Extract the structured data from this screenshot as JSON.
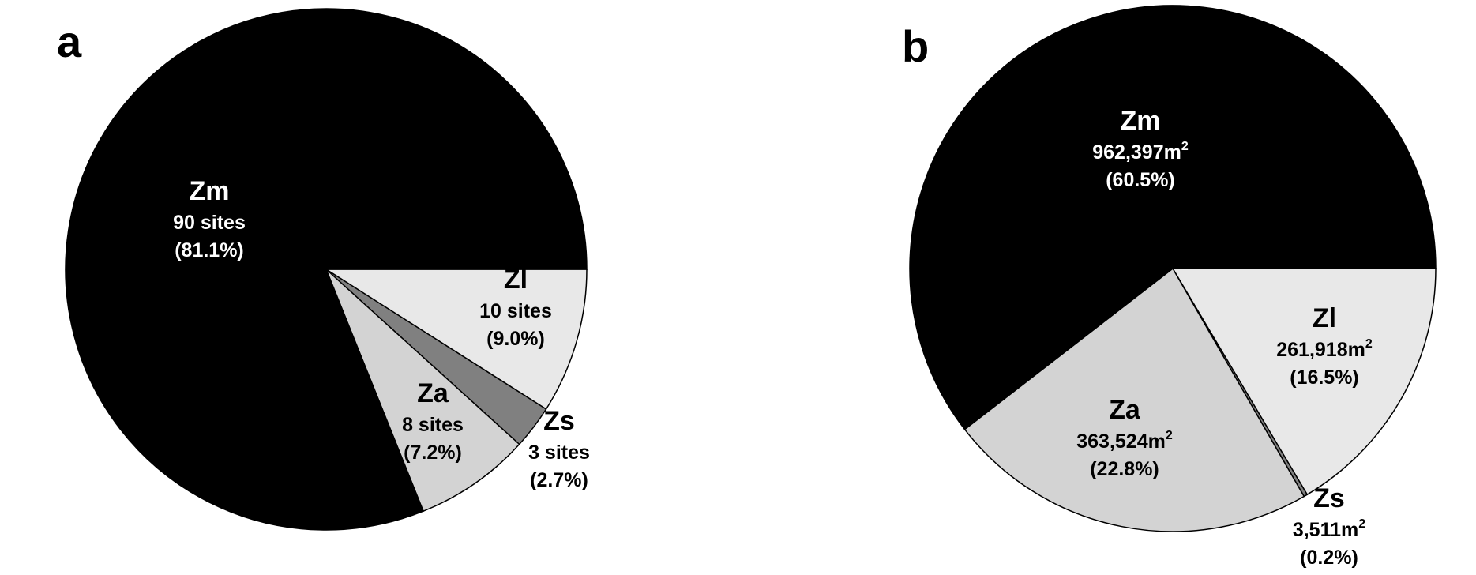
{
  "chart_data": [
    {
      "type": "pie",
      "panel": "a",
      "title": "",
      "colors": {
        "Zm": "#000000",
        "Zl": "#e8e8e8",
        "Zs": "#808080",
        "Za": "#d3d3d3"
      },
      "slices": [
        {
          "category": "Zm",
          "value": 90,
          "value_label": "90 sites",
          "percent": 81.1,
          "percent_label": "(81.1%)"
        },
        {
          "category": "Zl",
          "value": 10,
          "value_label": "10 sites",
          "percent": 9.0,
          "percent_label": "(9.0%)"
        },
        {
          "category": "Zs",
          "value": 3,
          "value_label": "3 sites",
          "percent": 2.7,
          "percent_label": "(2.7%)"
        },
        {
          "category": "Za",
          "value": 8,
          "value_label": "8 sites",
          "percent": 7.2,
          "percent_label": "(7.2%)"
        }
      ]
    },
    {
      "type": "pie",
      "panel": "b",
      "title": "",
      "unit": "m",
      "unit_superscript": "2",
      "colors": {
        "Zm": "#000000",
        "Zl": "#e8e8e8",
        "Zs": "#808080",
        "Za": "#d3d3d3"
      },
      "slices": [
        {
          "category": "Zm",
          "value": 962397,
          "value_label": "962,397m",
          "percent": 60.5,
          "percent_label": "(60.5%)"
        },
        {
          "category": "Zl",
          "value": 261918,
          "value_label": "261,918m",
          "percent": 16.5,
          "percent_label": "(16.5%)"
        },
        {
          "category": "Zs",
          "value": 3511,
          "value_label": "3,511m",
          "percent": 0.2,
          "percent_label": "(0.2%)"
        },
        {
          "category": "Za",
          "value": 363524,
          "value_label": "363,524m",
          "percent": 22.8,
          "percent_label": "(22.8%)"
        }
      ]
    }
  ]
}
